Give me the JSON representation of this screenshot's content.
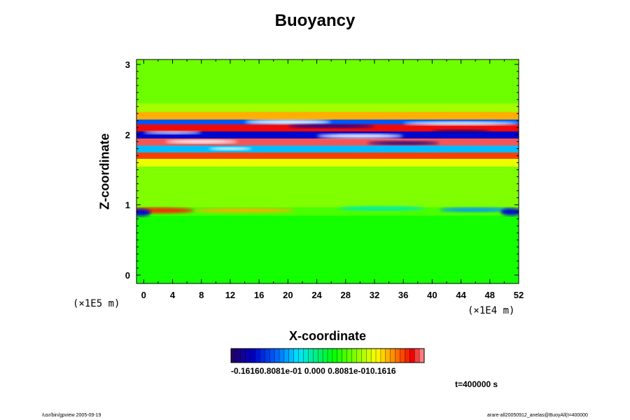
{
  "chart_data": {
    "type": "heatmap",
    "title": "Buoyancy",
    "xlabel": "X-coordinate",
    "ylabel": "Z-coordinate",
    "x_unit": "(×1E4 m)",
    "y_unit": "(×1E5 m)",
    "xlim": [
      -1,
      52
    ],
    "ylim": [
      -0.12,
      3.07
    ],
    "x_ticks": [
      "0",
      "4",
      "8",
      "12",
      "16",
      "20",
      "24",
      "28",
      "32",
      "36",
      "40",
      "44",
      "48",
      "52"
    ],
    "y_ticks": [
      "0",
      "1",
      "2",
      "3"
    ],
    "colorbar": {
      "range": [
        -0.1616,
        0.1616
      ],
      "labels": "-0.16160.8081e-01 0.000 0.8081e-010.1616"
    },
    "bands": [
      {
        "z_min": -0.12,
        "z_max": 0.85,
        "value": 0.015
      },
      {
        "z_min": 0.85,
        "z_max": 0.97,
        "value": 0.03
      },
      {
        "z_min": 0.97,
        "z_max": 1.55,
        "value": 0.045
      },
      {
        "z_min": 1.55,
        "z_max": 1.66,
        "value": 0.075
      },
      {
        "z_min": 1.66,
        "z_max": 1.75,
        "value": 0.125
      },
      {
        "z_min": 1.75,
        "z_max": 1.85,
        "value": -0.06
      },
      {
        "z_min": 1.85,
        "z_max": 1.95,
        "value": 0.15
      },
      {
        "z_min": 1.95,
        "z_max": 2.05,
        "value": -0.12
      },
      {
        "z_min": 2.05,
        "z_max": 2.15,
        "value": 0.14
      },
      {
        "z_min": 2.15,
        "z_max": 2.22,
        "value": -0.09
      },
      {
        "z_min": 2.22,
        "z_max": 2.33,
        "value": 0.1
      },
      {
        "z_min": 2.33,
        "z_max": 2.45,
        "value": 0.055
      },
      {
        "z_min": 2.45,
        "z_max": 3.07,
        "value": 0.04
      }
    ],
    "features": [
      {
        "x": 2,
        "z": 0.92,
        "width": 10,
        "height": 0.08,
        "value": 0.13
      },
      {
        "x": 14,
        "z": 0.92,
        "width": 14,
        "height": 0.06,
        "value": 0.1
      },
      {
        "x": 33,
        "z": 0.95,
        "width": 12,
        "height": 0.06,
        "value": -0.03
      },
      {
        "x": 46,
        "z": 0.93,
        "width": 10,
        "height": 0.06,
        "value": -0.07
      },
      {
        "x": 51,
        "z": 0.9,
        "width": 3,
        "height": 0.1,
        "value": -0.12
      },
      {
        "x": -0.5,
        "z": 0.89,
        "width": 3,
        "height": 0.1,
        "value": -0.12
      },
      {
        "x": 20,
        "z": 2.18,
        "width": 12,
        "height": 0.06,
        "value": 0.2
      },
      {
        "x": 30,
        "z": 1.98,
        "width": 12,
        "height": 0.06,
        "value": 0.2
      },
      {
        "x": 44,
        "z": 2.16,
        "width": 16,
        "height": 0.05,
        "value": 0.2
      },
      {
        "x": 8,
        "z": 1.9,
        "width": 10,
        "height": 0.05,
        "value": 0.2
      },
      {
        "x": 12,
        "z": 1.8,
        "width": 6,
        "height": 0.04,
        "value": 0.2
      },
      {
        "x": 36,
        "z": 1.88,
        "width": 10,
        "height": 0.05,
        "value": -0.15
      },
      {
        "x": 44,
        "z": 2.05,
        "width": 8,
        "height": 0.04,
        "value": -0.15
      },
      {
        "x": 4,
        "z": 2.03,
        "width": 8,
        "height": 0.04,
        "value": 0.17
      },
      {
        "x": 26,
        "z": 2.12,
        "width": 12,
        "height": 0.05,
        "value": -0.14
      }
    ]
  },
  "time_label": "t=400000 s",
  "footer_left": "/usr/bin/gpview 2005-09-19",
  "footer_right": "arare-all20050912_anelas@BuoyAll(t=400000"
}
